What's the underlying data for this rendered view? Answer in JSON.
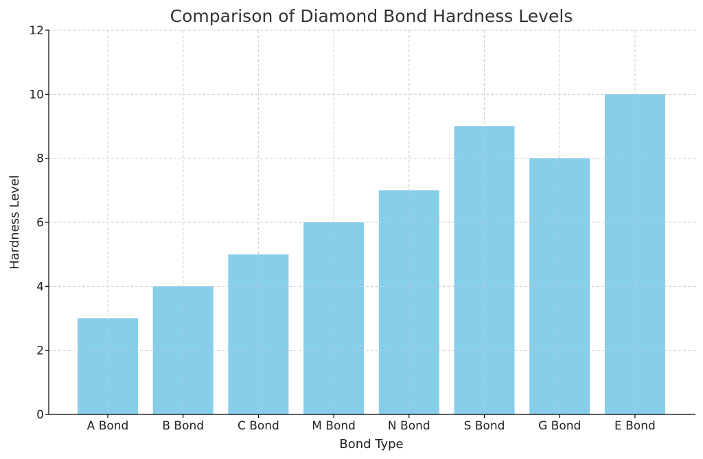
{
  "chart_data": {
    "type": "bar",
    "title": "Comparison of Diamond Bond Hardness Levels",
    "xlabel": "Bond Type",
    "ylabel": "Hardness Level",
    "categories": [
      "A Bond",
      "B Bond",
      "C Bond",
      "M Bond",
      "N Bond",
      "S Bond",
      "G Bond",
      "E Bond"
    ],
    "values": [
      3,
      4,
      5,
      6,
      7,
      9,
      8,
      10
    ],
    "ylim": [
      0,
      12
    ],
    "yticks": [
      "0",
      "2",
      "4",
      "6",
      "8",
      "10",
      "12"
    ],
    "grid": true,
    "bar_color": "#87CEEB"
  }
}
